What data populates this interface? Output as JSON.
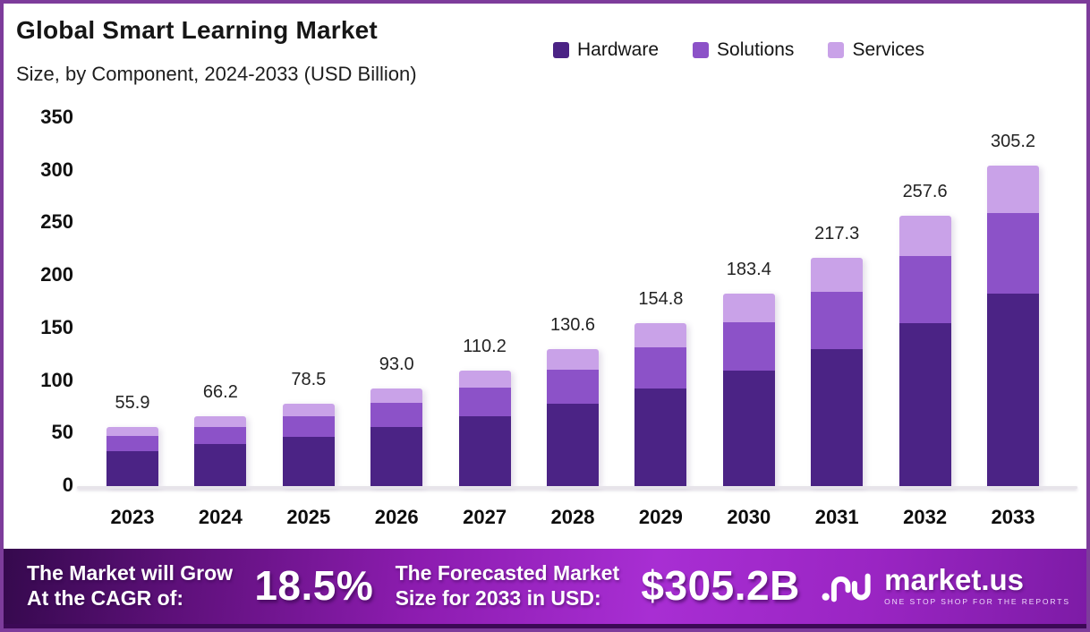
{
  "header": {
    "title": "Global Smart Learning Market",
    "subtitle": "Size, by Component, 2024-2033 (USD Billion)"
  },
  "chart_data": {
    "type": "bar",
    "stacked": true,
    "title": "Global Smart Learning Market Size, by Component, 2024-2033 (USD Billion)",
    "categories": [
      "2023",
      "2024",
      "2025",
      "2026",
      "2027",
      "2028",
      "2029",
      "2030",
      "2031",
      "2032",
      "2033"
    ],
    "totals": [
      55.9,
      66.2,
      78.5,
      93.0,
      110.2,
      130.6,
      154.8,
      183.4,
      217.3,
      257.6,
      305.2
    ],
    "data_labels": [
      "55.9",
      "66.2",
      "78.5",
      "93.0",
      "110.2",
      "130.6",
      "154.8",
      "183.4",
      "217.3",
      "257.6",
      "305.2"
    ],
    "series": [
      {
        "name": "Hardware",
        "color": "#4B2385",
        "values": [
          33.5,
          39.7,
          47.1,
          55.8,
          66.1,
          78.4,
          92.9,
          110.0,
          130.4,
          154.6,
          183.1
        ]
      },
      {
        "name": "Solutions",
        "color": "#8C52C8",
        "values": [
          14.0,
          16.6,
          19.6,
          23.3,
          27.6,
          32.7,
          38.7,
          45.9,
          54.3,
          64.4,
          76.3
        ]
      },
      {
        "name": "Services",
        "color": "#C9A2E8",
        "values": [
          8.4,
          9.9,
          11.8,
          13.9,
          16.5,
          19.5,
          23.2,
          27.5,
          32.6,
          38.6,
          45.8
        ]
      }
    ],
    "xlabel": "",
    "ylabel": "",
    "ylim": [
      0,
      350
    ],
    "yticks": [
      0,
      50,
      100,
      150,
      200,
      250,
      300,
      350
    ],
    "ytick_labels": [
      "0",
      "50",
      "100",
      "150",
      "200",
      "250",
      "300",
      "350"
    ],
    "grid": false,
    "legend_position": "top-right"
  },
  "banner": {
    "cagr_label_line1": "The Market will Grow",
    "cagr_label_line2": "At the CAGR of:",
    "cagr_value": "18.5%",
    "forecast_label_line1": "The Forecasted Market",
    "forecast_label_line2": "Size for 2033 in USD:",
    "forecast_value": "$305.2B"
  },
  "logo": {
    "name": "market.us",
    "tagline": "ONE STOP SHOP FOR THE REPORTS"
  },
  "colors": {
    "frame_border": "#7d3c9b",
    "hardware": "#4B2385",
    "solutions": "#8C52C8",
    "services": "#C9A2E8",
    "banner_gradient_start": "#35094d",
    "banner_gradient_mid": "#a82ed3",
    "banner_gradient_end": "#7d1ba6",
    "banner_bottom_strip": "#3c0956",
    "axis_text": "#111111"
  }
}
